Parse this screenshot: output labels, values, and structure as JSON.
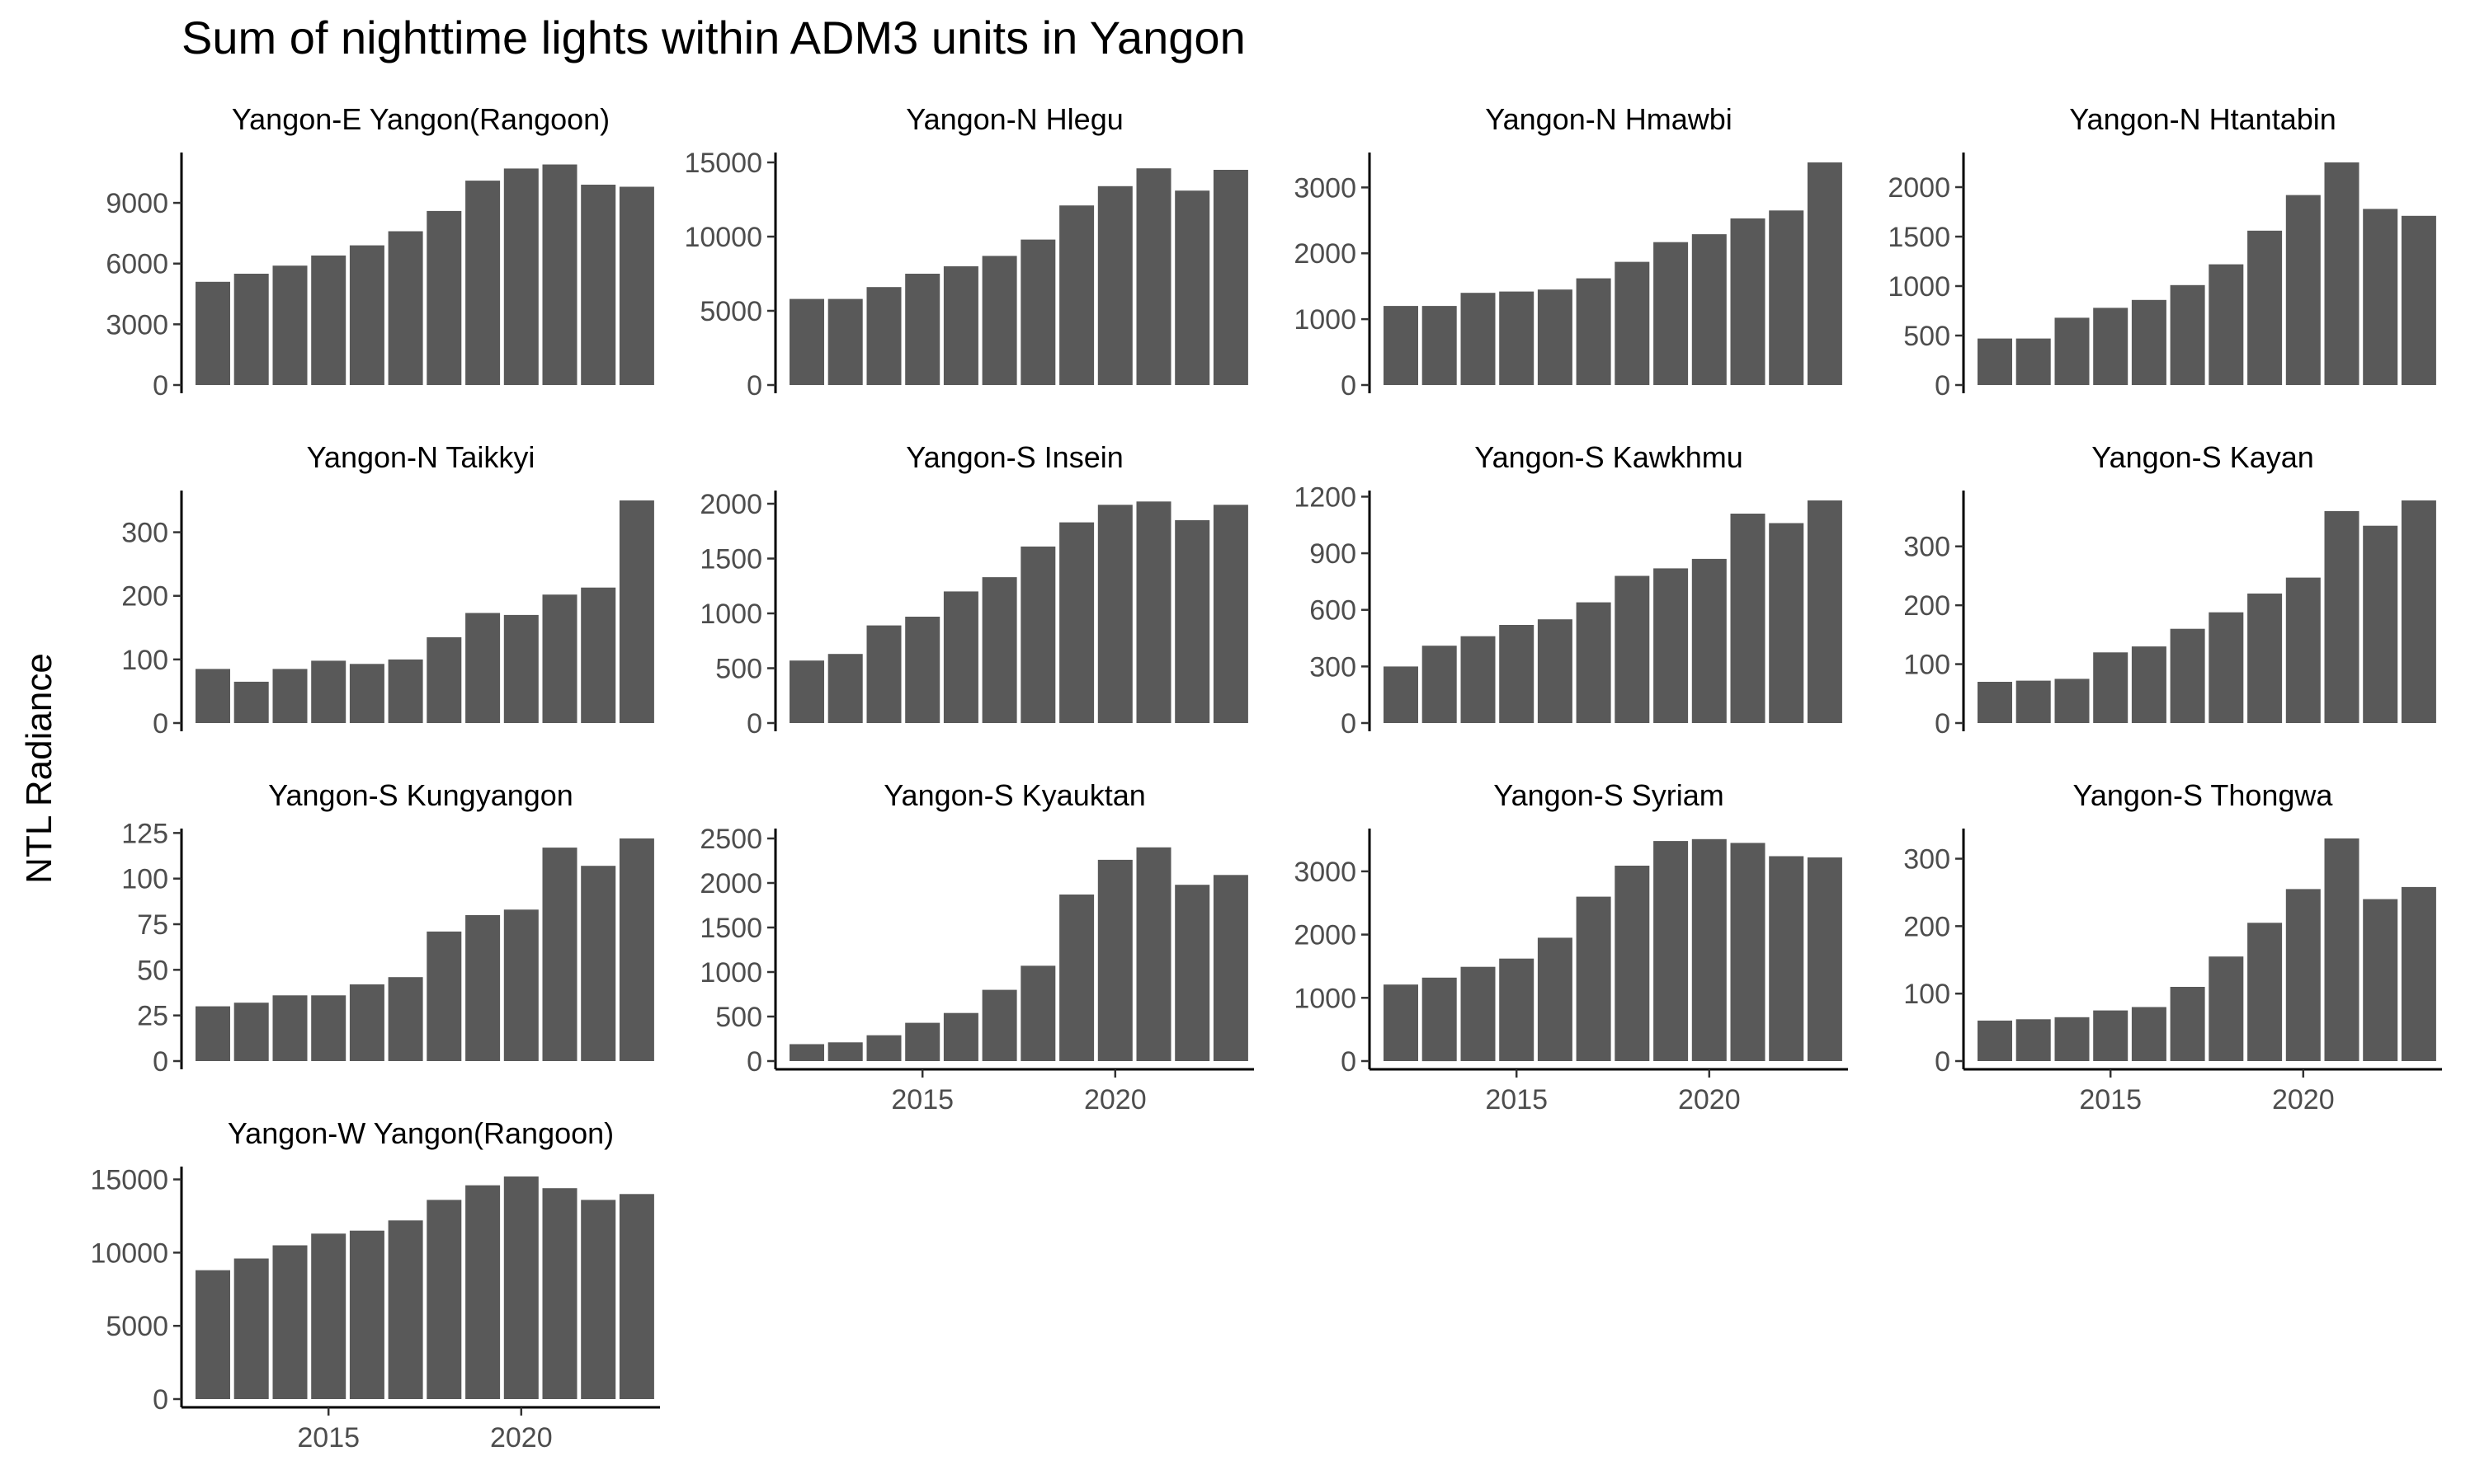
{
  "chart_data": {
    "type": "bar",
    "title": "Sum of nighttime lights within ADM3 units in Yangon",
    "ylabel": "NTL Radiance",
    "xlabel": "",
    "layout": "facet-wrap, 4 columns, free y scales",
    "years": [
      2012,
      2013,
      2014,
      2015,
      2016,
      2017,
      2018,
      2019,
      2020,
      2021,
      2022,
      2023
    ],
    "x_ticks": [
      2015,
      2020
    ],
    "bar_color": "#595959",
    "panels": [
      {
        "name": "Yangon-E Yangon(Rangoon)",
        "y_ticks": [
          0,
          3000,
          6000,
          9000
        ],
        "ylim": [
          0,
          11000
        ],
        "values": [
          5100,
          5500,
          5900,
          6400,
          6900,
          7600,
          8600,
          10100,
          10700,
          10900,
          9900,
          9800
        ]
      },
      {
        "name": "Yangon-N Hlegu",
        "y_ticks": [
          0,
          5000,
          10000,
          15000
        ],
        "ylim": [
          0,
          15000
        ],
        "values": [
          5800,
          5800,
          6600,
          7500,
          8000,
          8700,
          9800,
          12100,
          13400,
          14600,
          13100,
          14500
        ]
      },
      {
        "name": "Yangon-N Hmawbi",
        "y_ticks": [
          0,
          1000,
          2000,
          3000
        ],
        "ylim": [
          0,
          3380
        ],
        "values": [
          1200,
          1200,
          1400,
          1420,
          1450,
          1620,
          1870,
          2170,
          2290,
          2530,
          2650,
          3380
        ]
      },
      {
        "name": "Yangon-N Htantabin",
        "y_ticks": [
          0,
          500,
          1000,
          1500,
          2000
        ],
        "ylim": [
          0,
          2250
        ],
        "values": [
          470,
          470,
          680,
          780,
          860,
          1010,
          1220,
          1560,
          1920,
          2250,
          1780,
          1710
        ]
      },
      {
        "name": "Yangon-N Taikkyi",
        "y_ticks": [
          0,
          100,
          200,
          300
        ],
        "ylim": [
          0,
          350
        ],
        "values": [
          85,
          65,
          85,
          98,
          93,
          100,
          135,
          173,
          170,
          202,
          213,
          350
        ]
      },
      {
        "name": "Yangon-S Insein",
        "y_ticks": [
          0,
          500,
          1000,
          1500,
          2000
        ],
        "ylim": [
          0,
          2030
        ],
        "values": [
          570,
          630,
          890,
          970,
          1200,
          1330,
          1610,
          1830,
          1990,
          2020,
          1850,
          1990
        ]
      },
      {
        "name": "Yangon-S Kawkhmu",
        "y_ticks": [
          0,
          300,
          600,
          900,
          1200
        ],
        "ylim": [
          0,
          1180
        ],
        "values": [
          300,
          410,
          460,
          520,
          550,
          640,
          780,
          820,
          870,
          1110,
          1060,
          1180
        ]
      },
      {
        "name": "Yangon-S Kayan",
        "y_ticks": [
          0,
          100,
          200,
          300
        ],
        "ylim": [
          0,
          378
        ],
        "values": [
          70,
          72,
          75,
          120,
          130,
          160,
          188,
          220,
          247,
          360,
          335,
          378
        ]
      },
      {
        "name": "Yangon-S Kungyangon",
        "y_ticks": [
          0,
          25,
          50,
          75,
          100,
          125
        ],
        "ylim": [
          0,
          122
        ],
        "values": [
          30,
          32,
          36,
          36,
          42,
          46,
          71,
          80,
          83,
          117,
          107,
          122
        ]
      },
      {
        "name": "Yangon-S Kyauktan",
        "y_ticks": [
          0,
          500,
          1000,
          1500,
          2000,
          2500
        ],
        "ylim": [
          0,
          2500
        ],
        "values": [
          190,
          210,
          290,
          430,
          540,
          800,
          1070,
          1870,
          2260,
          2400,
          1980,
          2090
        ]
      },
      {
        "name": "Yangon-S Syriam",
        "y_ticks": [
          0,
          1000,
          2000,
          3000
        ],
        "ylim": [
          0,
          3520
        ],
        "values": [
          1210,
          1320,
          1490,
          1620,
          1950,
          2600,
          3090,
          3480,
          3510,
          3450,
          3240,
          3220
        ]
      },
      {
        "name": "Yangon-S Thongwa",
        "y_ticks": [
          0,
          100,
          200,
          300
        ],
        "ylim": [
          0,
          330
        ],
        "values": [
          60,
          62,
          65,
          75,
          80,
          110,
          155,
          205,
          255,
          330,
          240,
          258
        ]
      },
      {
        "name": "Yangon-W Yangon(Rangoon)",
        "y_ticks": [
          0,
          5000,
          10000,
          15000
        ],
        "ylim": [
          0,
          15200
        ],
        "values": [
          8800,
          9600,
          10500,
          11300,
          11500,
          12200,
          13600,
          14600,
          15200,
          14400,
          13600,
          14000
        ]
      }
    ]
  }
}
